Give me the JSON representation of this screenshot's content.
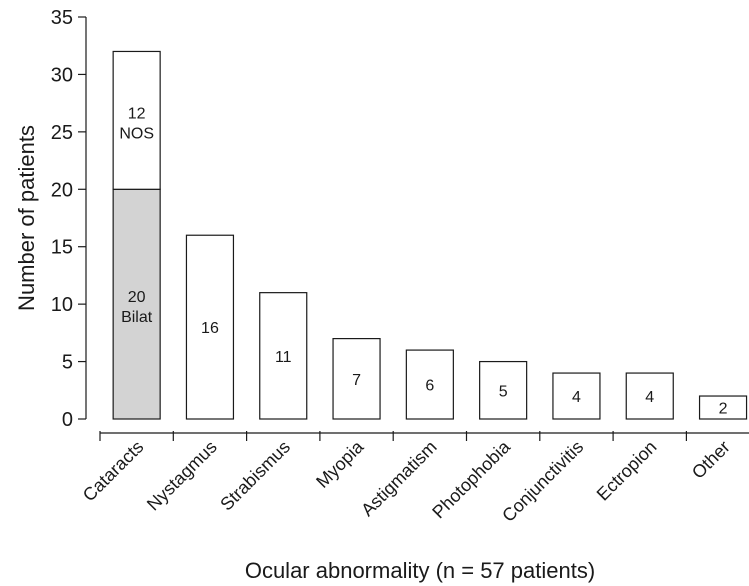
{
  "chart_data": {
    "type": "bar",
    "xlabel": "Ocular abnormality (n = 57 patients)",
    "ylabel": "Number of patients",
    "ylim": [
      0,
      35
    ],
    "yticks": [
      "0",
      "5",
      "10",
      "15",
      "20",
      "25",
      "30",
      "35"
    ],
    "grid": false,
    "categories": [
      "Cataracts",
      "Nystagmus",
      "Strabismus",
      "Myopia",
      "Astigmatism",
      "Photophobia",
      "Conjunctivitis",
      "Ectropion",
      "Other"
    ],
    "values": [
      32,
      16,
      11,
      7,
      6,
      5,
      4,
      4,
      2
    ],
    "bar_labels": [
      "",
      "16",
      "11",
      "7",
      "6",
      "5",
      "4",
      "4",
      "2"
    ],
    "stacked_first_bar": {
      "segments": [
        {
          "value": 20,
          "label_line1": "20",
          "label_line2": "Bilat",
          "color": "#d3d3d3"
        },
        {
          "value": 12,
          "label_line1": "12",
          "label_line2": "NOS",
          "color": "#ffffff"
        }
      ]
    },
    "bar_color": "#ffffff",
    "edge_color": "#1a1a1a"
  }
}
